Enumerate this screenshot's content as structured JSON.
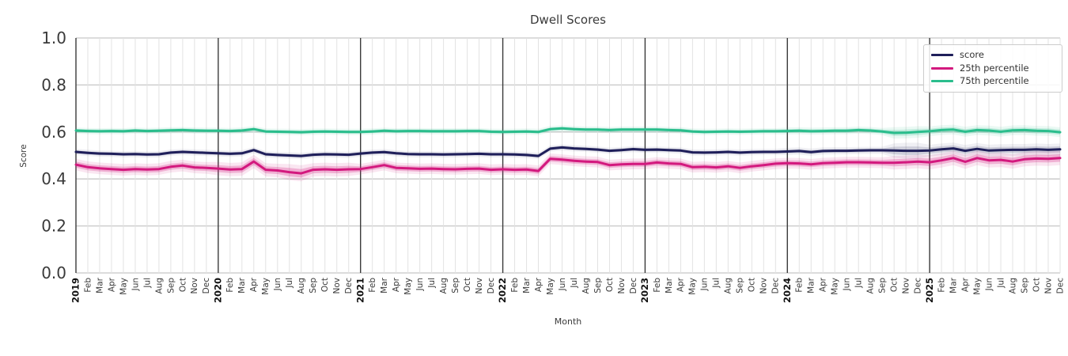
{
  "title": "Dwell Scores",
  "axes": {
    "x_label": "Month",
    "y_label": "Score",
    "y_ticks": [
      "0.0",
      "0.2",
      "0.4",
      "0.6",
      "0.8",
      "1.0"
    ]
  },
  "legend": {
    "items": [
      {
        "label": "score",
        "color": "#1f1f5a"
      },
      {
        "label": "25th percentile",
        "color": "#d3197e"
      },
      {
        "label": "75th percentile",
        "color": "#2abd8c"
      }
    ]
  },
  "colors": {
    "grid_h": "#c7c7c7",
    "grid_month": "#e2e2e2",
    "grid_year": "#3a3a3a",
    "tick_text": "#3a3a3a",
    "year_text": "#111111"
  },
  "chart_data": {
    "type": "line",
    "title": "Dwell Scores",
    "xlabel": "Month",
    "ylabel": "Score",
    "ylim": [
      0.0,
      1.0
    ],
    "grid": true,
    "legend_position": "upper right",
    "x_labels": [
      "2019",
      "Feb",
      "Mar",
      "Apr",
      "May",
      "Jun",
      "Jul",
      "Aug",
      "Sep",
      "Oct",
      "Nov",
      "Dec",
      "2020",
      "Feb",
      "Mar",
      "Apr",
      "May",
      "Jun",
      "Jul",
      "Aug",
      "Sep",
      "Oct",
      "Nov",
      "Dec",
      "2021",
      "Feb",
      "Mar",
      "Apr",
      "May",
      "Jun",
      "Jul",
      "Aug",
      "Sep",
      "Oct",
      "Nov",
      "Dec",
      "2022",
      "Feb",
      "Mar",
      "Apr",
      "May",
      "Jun",
      "Jul",
      "Aug",
      "Sep",
      "Oct",
      "Nov",
      "Dec",
      "2023",
      "Feb",
      "Mar",
      "Apr",
      "May",
      "Jun",
      "Jul",
      "Aug",
      "Sep",
      "Oct",
      "Nov",
      "Dec",
      "2024",
      "Feb",
      "Mar",
      "Apr",
      "May",
      "Jun",
      "Jul",
      "Aug",
      "Sep",
      "Oct",
      "Nov",
      "Dec",
      "2025",
      "Feb",
      "Mar",
      "Apr",
      "May",
      "Jun",
      "Jul",
      "Aug",
      "Sep",
      "Oct",
      "Nov",
      "Dec"
    ],
    "series": [
      {
        "name": "score",
        "color": "#1f1f5a",
        "values": [
          0.515,
          0.511,
          0.508,
          0.507,
          0.505,
          0.506,
          0.504,
          0.505,
          0.512,
          0.515,
          0.513,
          0.511,
          0.509,
          0.507,
          0.509,
          0.523,
          0.505,
          0.502,
          0.5,
          0.498,
          0.503,
          0.505,
          0.504,
          0.503,
          0.508,
          0.512,
          0.514,
          0.509,
          0.506,
          0.505,
          0.505,
          0.504,
          0.505,
          0.506,
          0.507,
          0.505,
          0.505,
          0.504,
          0.502,
          0.498,
          0.529,
          0.534,
          0.53,
          0.528,
          0.525,
          0.52,
          0.523,
          0.527,
          0.524,
          0.525,
          0.523,
          0.521,
          0.513,
          0.512,
          0.513,
          0.515,
          0.512,
          0.514,
          0.515,
          0.515,
          0.517,
          0.519,
          0.514,
          0.519,
          0.52,
          0.52,
          0.521,
          0.522,
          0.522,
          0.521,
          0.52,
          0.52,
          0.521,
          0.526,
          0.53,
          0.52,
          0.528,
          0.521,
          0.523,
          0.524,
          0.524,
          0.526,
          0.524,
          0.526
        ],
        "band": [
          0.007,
          0.007,
          0.007,
          0.007,
          0.007,
          0.007,
          0.007,
          0.007,
          0.007,
          0.007,
          0.007,
          0.007,
          0.007,
          0.007,
          0.007,
          0.007,
          0.007,
          0.007,
          0.007,
          0.007,
          0.007,
          0.007,
          0.007,
          0.007,
          0.007,
          0.007,
          0.007,
          0.007,
          0.007,
          0.007,
          0.007,
          0.007,
          0.007,
          0.007,
          0.007,
          0.007,
          0.007,
          0.007,
          0.007,
          0.007,
          0.007,
          0.007,
          0.007,
          0.007,
          0.007,
          0.007,
          0.007,
          0.007,
          0.007,
          0.007,
          0.007,
          0.007,
          0.007,
          0.007,
          0.007,
          0.007,
          0.007,
          0.007,
          0.007,
          0.007,
          0.008,
          0.008,
          0.008,
          0.008,
          0.008,
          0.008,
          0.008,
          0.008,
          0.008,
          0.016,
          0.018,
          0.018,
          0.013,
          0.013,
          0.013,
          0.013,
          0.013,
          0.013,
          0.013,
          0.013,
          0.013,
          0.013,
          0.013,
          0.013
        ]
      },
      {
        "name": "25th percentile",
        "color": "#d3197e",
        "values": [
          0.461,
          0.45,
          0.445,
          0.442,
          0.439,
          0.442,
          0.44,
          0.442,
          0.452,
          0.457,
          0.449,
          0.447,
          0.444,
          0.44,
          0.442,
          0.474,
          0.439,
          0.436,
          0.429,
          0.424,
          0.439,
          0.441,
          0.439,
          0.441,
          0.442,
          0.45,
          0.459,
          0.447,
          0.445,
          0.443,
          0.444,
          0.442,
          0.441,
          0.443,
          0.444,
          0.439,
          0.441,
          0.439,
          0.44,
          0.434,
          0.486,
          0.482,
          0.477,
          0.474,
          0.472,
          0.459,
          0.462,
          0.464,
          0.464,
          0.47,
          0.466,
          0.464,
          0.45,
          0.452,
          0.449,
          0.454,
          0.447,
          0.454,
          0.459,
          0.465,
          0.467,
          0.466,
          0.462,
          0.467,
          0.469,
          0.471,
          0.471,
          0.47,
          0.469,
          0.469,
          0.471,
          0.474,
          0.471,
          0.479,
          0.489,
          0.473,
          0.489,
          0.479,
          0.481,
          0.474,
          0.484,
          0.487,
          0.486,
          0.489
        ],
        "band": [
          0.013,
          0.013,
          0.013,
          0.013,
          0.013,
          0.013,
          0.013,
          0.013,
          0.013,
          0.013,
          0.013,
          0.013,
          0.015,
          0.015,
          0.015,
          0.015,
          0.015,
          0.015,
          0.018,
          0.018,
          0.015,
          0.015,
          0.015,
          0.015,
          0.012,
          0.012,
          0.012,
          0.012,
          0.012,
          0.012,
          0.012,
          0.012,
          0.012,
          0.012,
          0.012,
          0.012,
          0.012,
          0.012,
          0.012,
          0.012,
          0.012,
          0.012,
          0.012,
          0.012,
          0.012,
          0.012,
          0.012,
          0.012,
          0.012,
          0.012,
          0.012,
          0.012,
          0.012,
          0.012,
          0.012,
          0.012,
          0.012,
          0.012,
          0.012,
          0.012,
          0.012,
          0.012,
          0.012,
          0.012,
          0.012,
          0.012,
          0.012,
          0.012,
          0.012,
          0.015,
          0.015,
          0.015,
          0.016,
          0.016,
          0.016,
          0.016,
          0.016,
          0.016,
          0.016,
          0.016,
          0.016,
          0.016,
          0.016,
          0.016
        ]
      },
      {
        "name": "75th percentile",
        "color": "#2abd8c",
        "values": [
          0.606,
          0.604,
          0.603,
          0.604,
          0.603,
          0.606,
          0.604,
          0.605,
          0.607,
          0.608,
          0.606,
          0.605,
          0.605,
          0.604,
          0.606,
          0.612,
          0.602,
          0.601,
          0.6,
          0.599,
          0.601,
          0.602,
          0.601,
          0.6,
          0.6,
          0.602,
          0.605,
          0.603,
          0.604,
          0.604,
          0.603,
          0.603,
          0.603,
          0.604,
          0.604,
          0.601,
          0.6,
          0.601,
          0.602,
          0.6,
          0.612,
          0.615,
          0.612,
          0.61,
          0.61,
          0.608,
          0.61,
          0.61,
          0.61,
          0.61,
          0.608,
          0.607,
          0.602,
          0.6,
          0.601,
          0.602,
          0.601,
          0.602,
          0.603,
          0.603,
          0.604,
          0.605,
          0.603,
          0.604,
          0.605,
          0.605,
          0.608,
          0.606,
          0.602,
          0.596,
          0.597,
          0.6,
          0.603,
          0.608,
          0.61,
          0.601,
          0.608,
          0.606,
          0.601,
          0.607,
          0.608,
          0.605,
          0.604,
          0.599
        ],
        "band": [
          0.007,
          0.007,
          0.007,
          0.007,
          0.007,
          0.007,
          0.007,
          0.007,
          0.007,
          0.007,
          0.007,
          0.007,
          0.007,
          0.007,
          0.007,
          0.007,
          0.007,
          0.007,
          0.007,
          0.007,
          0.007,
          0.007,
          0.007,
          0.007,
          0.007,
          0.007,
          0.007,
          0.007,
          0.007,
          0.007,
          0.007,
          0.007,
          0.007,
          0.007,
          0.007,
          0.007,
          0.007,
          0.007,
          0.007,
          0.007,
          0.007,
          0.007,
          0.007,
          0.007,
          0.007,
          0.007,
          0.007,
          0.007,
          0.007,
          0.007,
          0.007,
          0.007,
          0.007,
          0.007,
          0.007,
          0.007,
          0.007,
          0.007,
          0.007,
          0.007,
          0.008,
          0.008,
          0.008,
          0.008,
          0.008,
          0.008,
          0.008,
          0.008,
          0.008,
          0.013,
          0.013,
          0.013,
          0.011,
          0.011,
          0.011,
          0.011,
          0.011,
          0.011,
          0.011,
          0.011,
          0.011,
          0.011,
          0.011,
          0.011
        ]
      }
    ]
  }
}
